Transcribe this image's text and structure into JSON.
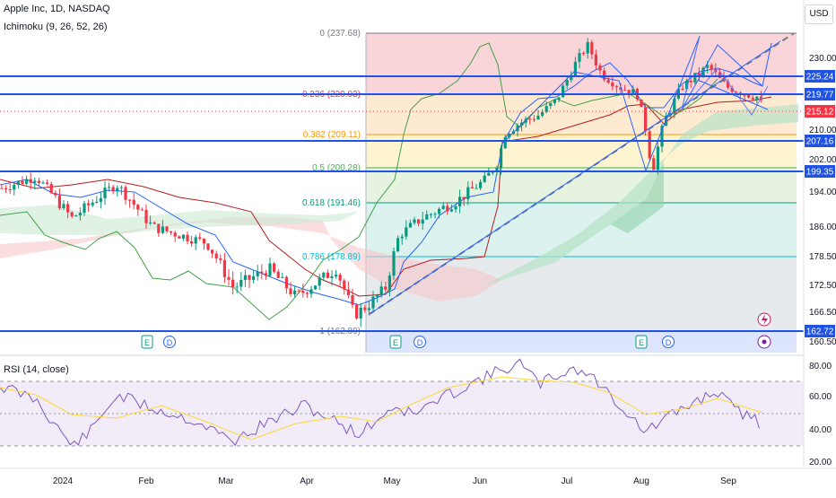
{
  "header": {
    "symbol_title": "Apple Inc, 1D, NASDAQ",
    "indicator_ichimoku": "Ichimoku (9, 26, 52, 26)",
    "indicator_rsi": "RSI (14, close)",
    "currency_button": "USD"
  },
  "price_axis": {
    "ticks": [
      "230.00",
      "210.00",
      "202.00",
      "194.00",
      "186.00",
      "178.50",
      "172.50",
      "166.50",
      "160.50"
    ],
    "badges": [
      {
        "label": "225.24",
        "color": "#1e53e5"
      },
      {
        "label": "219.77",
        "color": "#1e53e5"
      },
      {
        "label": "215.12",
        "color": "#f23645"
      },
      {
        "label": "207.16",
        "color": "#1e53e5"
      },
      {
        "label": "199.35",
        "color": "#1e53e5"
      },
      {
        "label": "162.72",
        "color": "#1e53e5"
      }
    ]
  },
  "fib_levels": [
    {
      "label": "0 (237.68)",
      "color": "#787b86"
    },
    {
      "label": "0.236 (220.03)",
      "color": "#f23645"
    },
    {
      "label": "0.382 (209.11)",
      "color": "#ff9800"
    },
    {
      "label": "0.5 (200.28)",
      "color": "#4caf50"
    },
    {
      "label": "0.618 (191.46)",
      "color": "#089981"
    },
    {
      "label": "0.786 (178.89)",
      "color": "#00bcd4"
    },
    {
      "label": "1 (162.89)",
      "color": "#787b86"
    }
  ],
  "rsi_axis": {
    "ticks": [
      "80.00",
      "60.00",
      "40.00",
      "20.00"
    ]
  },
  "time_axis": {
    "labels": [
      "2024",
      "Feb",
      "Mar",
      "Apr",
      "May",
      "Jun",
      "Jul",
      "Aug",
      "Sep"
    ]
  },
  "event_markers": [
    "E",
    "D",
    "E",
    "D",
    "E",
    "D"
  ],
  "colors": {
    "up": "#089981",
    "down": "#f23645",
    "tenkan": "#2962ff",
    "kijun": "#b71c1c",
    "lagging": "#43a047",
    "rsi_line": "#7e57c2",
    "rsi_ma": "#fdd835",
    "horizontal_level": "#1e53e5"
  }
}
